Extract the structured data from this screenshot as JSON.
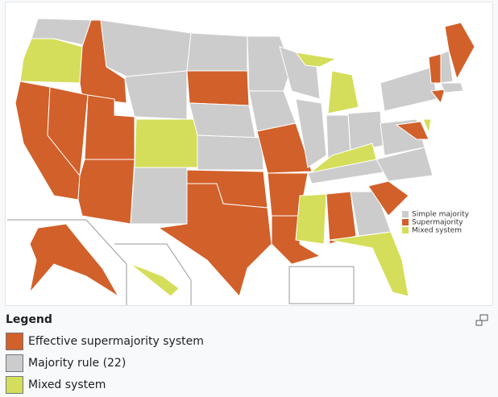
{
  "map": {
    "inset_legend": [
      "Simple majority",
      "Supermajority",
      "Mixed system"
    ]
  },
  "legend": {
    "title": "Legend",
    "items": [
      "Effective supermajority system",
      "Majority rule (22)",
      "Mixed system"
    ]
  }
}
